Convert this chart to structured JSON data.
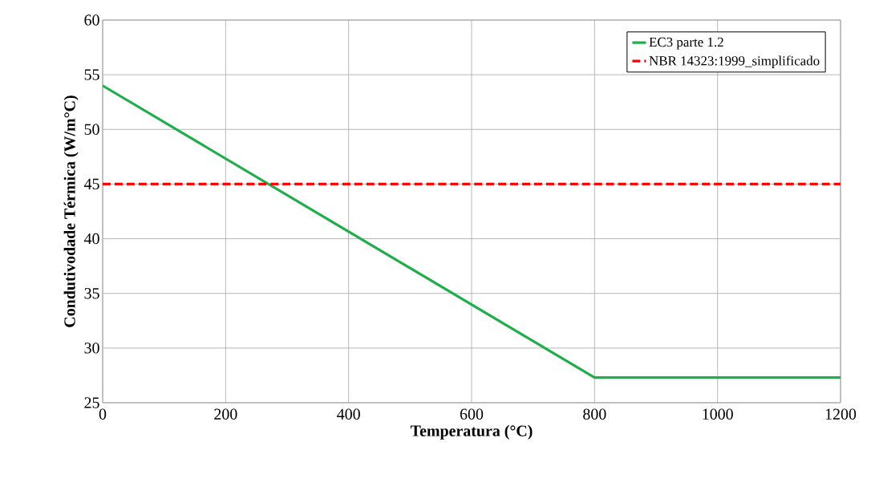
{
  "chart_data": {
    "type": "line",
    "xlabel": "Temperatura (°C)",
    "ylabel": "Condutivodade Térmica (W/m°C)",
    "xlim": [
      0,
      1200
    ],
    "ylim": [
      25,
      60
    ],
    "xticks": [
      0,
      200,
      400,
      600,
      800,
      1000,
      1200
    ],
    "yticks": [
      25,
      30,
      35,
      40,
      45,
      50,
      55,
      60
    ],
    "grid": true,
    "legend": "top right",
    "marker": "none",
    "series": [
      {
        "name": "EC3 parte 1.2",
        "color": "#1fae4b",
        "x": [
          0,
          800,
          1200
        ],
        "values": [
          54,
          27.3,
          27.3
        ],
        "line_style": "solid"
      },
      {
        "name": "NBR 14323:1999_simplificado",
        "color": "#ff0000",
        "x": [
          0,
          1200
        ],
        "values": [
          45,
          45
        ],
        "line_style": "dashed"
      }
    ]
  }
}
